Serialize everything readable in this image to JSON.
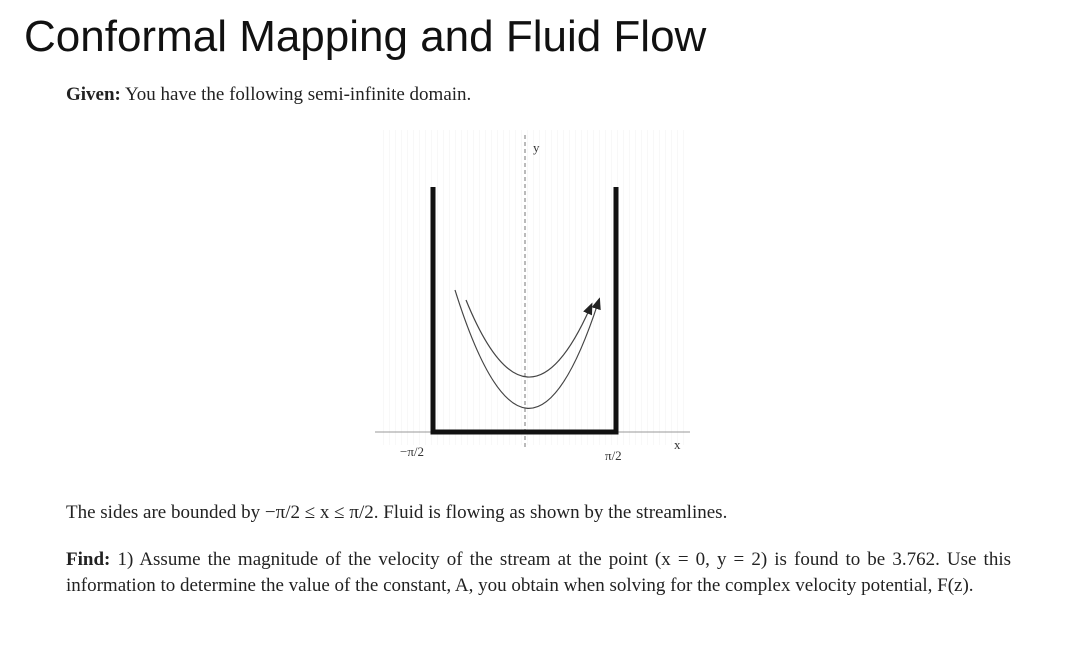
{
  "header": {
    "title": "Conformal Mapping and Fluid Flow"
  },
  "given": {
    "label": "Given:",
    "text": "You have the following semi-infinite domain."
  },
  "figure": {
    "y_label": "y",
    "x_label": "x",
    "left_label": "−π/2",
    "right_label": "π/2"
  },
  "description": {
    "text": "The sides are bounded by −π/2 ≤ x ≤ π/2. Fluid is flowing as shown by the streamlines."
  },
  "find": {
    "label": "Find:",
    "text": "1) Assume the magnitude of the velocity of the stream at the point (x = 0, y = 2) is found to be 3.762. Use this information to determine the value of the constant, A, you obtain when solving for the complex velocity potential, F(z)."
  }
}
